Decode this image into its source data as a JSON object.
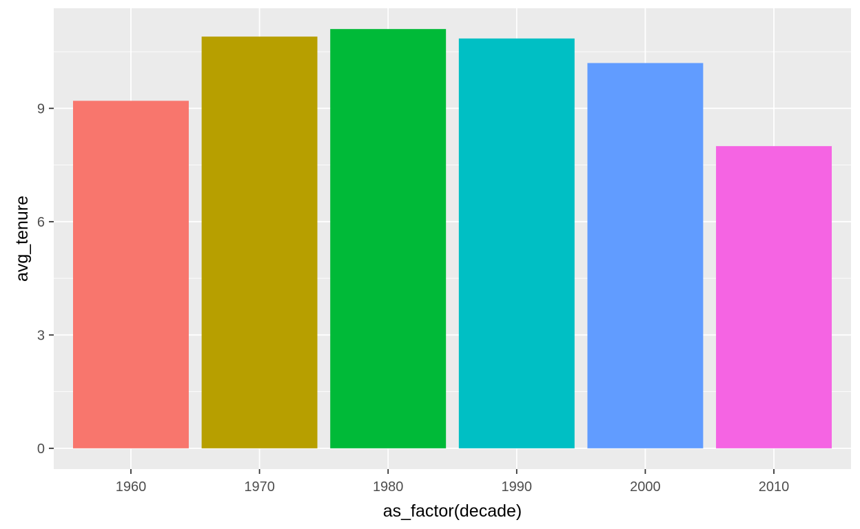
{
  "chart_data": {
    "type": "bar",
    "categories": [
      "1960",
      "1970",
      "1980",
      "1990",
      "2000",
      "2010"
    ],
    "values": [
      9.2,
      10.9,
      11.1,
      10.85,
      10.2,
      8.0
    ],
    "colors": [
      "#F8766D",
      "#B79F00",
      "#00BA38",
      "#00BFC4",
      "#619CFF",
      "#F564E3"
    ],
    "xlabel": "as_factor(decade)",
    "ylabel": "avg_tenure",
    "yticks": [
      0,
      3,
      6,
      9
    ],
    "ylim": [
      -0.55,
      11.65
    ],
    "grid": true,
    "legend": "none",
    "panel_background": "#EBEBEB",
    "gridline_color": "#FFFFFF"
  }
}
